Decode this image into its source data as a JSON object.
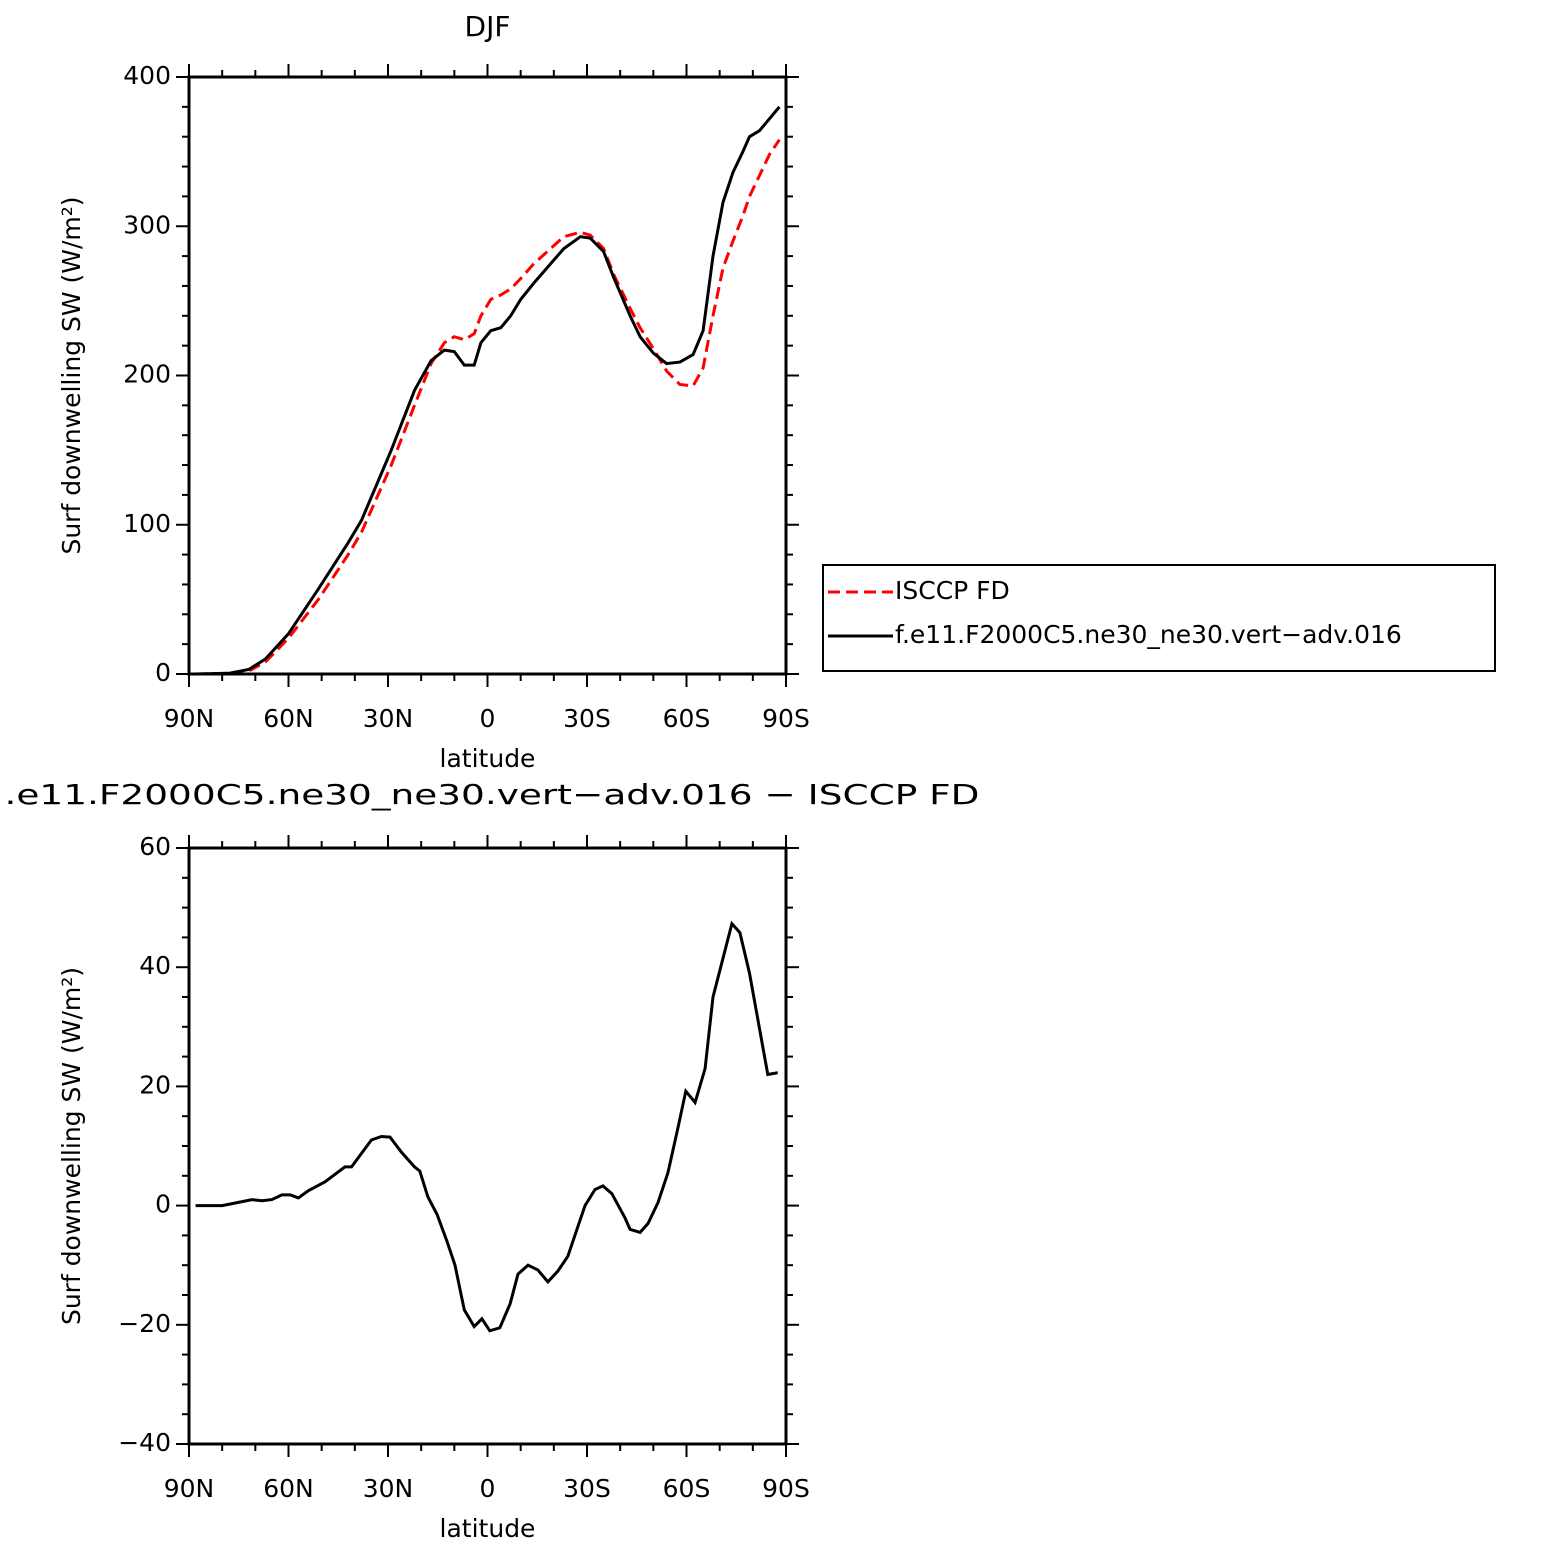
{
  "chart_data": [
    {
      "type": "line",
      "title": "DJF",
      "xlabel": "latitude",
      "ylabel": "Surf downwelling SW (W/m²)",
      "x": [
        88,
        78,
        72,
        67,
        60,
        51,
        42,
        38,
        29,
        22,
        17,
        13,
        10,
        7,
        4,
        2,
        -1,
        -4,
        -7,
        -10,
        -14,
        -23,
        -28,
        -31,
        -35,
        -38,
        -43,
        -46,
        -50,
        -54,
        -58,
        -62,
        -65,
        -68,
        -71,
        -74,
        -77,
        -79,
        -82,
        -85,
        -88
      ],
      "series": [
        {
          "name": "ISCCP FD",
          "color": "#ff0000",
          "dash": true,
          "values": [
            0,
            0.5,
            2,
            8,
            24,
            50,
            80,
            95,
            140,
            180,
            208,
            222,
            226,
            224,
            228,
            240,
            251,
            254,
            258,
            265,
            275,
            293,
            296,
            294,
            285,
            268,
            245,
            232,
            218,
            203,
            194,
            193,
            205,
            240,
            272,
            290,
            307,
            320,
            334,
            348,
            358
          ]
        },
        {
          "name": "f.e11.F2000C5.ne30_ne30.vert−adv.016",
          "color": "#000000",
          "dash": false,
          "values": [
            0,
            0.5,
            3,
            10,
            27,
            57,
            88,
            103,
            150,
            190,
            210,
            217,
            216,
            207,
            207,
            222,
            230,
            232,
            240,
            251,
            262,
            285,
            293,
            292,
            283,
            266,
            240,
            226,
            215,
            208,
            209,
            214,
            230,
            280,
            316,
            336,
            350,
            360,
            364,
            372,
            380
          ]
        }
      ],
      "xlim": [
        90,
        -90
      ],
      "xticks": [
        {
          "value": 90,
          "label": "90N"
        },
        {
          "value": 60,
          "label": "60N"
        },
        {
          "value": 30,
          "label": "30N"
        },
        0,
        {
          "value": -30,
          "label": "30S"
        },
        {
          "value": -60,
          "label": "60S"
        },
        {
          "value": -90,
          "label": "90S"
        }
      ],
      "ylim": [
        0,
        400
      ],
      "yticks": [
        0,
        100,
        200,
        300,
        400
      ],
      "legend": "right"
    },
    {
      "type": "line",
      "title": ".e11.F2000C5.ne30_ne30.vert−adv.016 − ISCCP FD",
      "xlabel": "latitude",
      "ylabel": "Surf downwelling SW (W/m²)",
      "x": [
        88,
        80,
        75.5,
        71,
        68,
        65,
        62,
        59.5,
        57,
        54,
        49,
        43,
        41,
        35,
        32,
        29.4,
        26,
        22,
        20.4,
        18,
        15.2,
        12.2,
        9.8,
        7,
        4,
        1.7,
        -0.7,
        -3.7,
        -6.8,
        -9.2,
        -12.2,
        -15.2,
        -18.2,
        -21.2,
        -24.2,
        -29.4,
        -32.4,
        -34.8,
        -37.5,
        -41.4,
        -43,
        -46,
        -48.4,
        -51.4,
        -54.4,
        -57.4,
        -59.8,
        -62.6,
        -65.6,
        -68,
        -73.7,
        -76.1,
        -79,
        -84.5,
        -87.5
      ],
      "values": [
        0,
        0,
        0.5,
        1,
        0.8,
        1,
        1.8,
        1.8,
        1.3,
        2.5,
        4,
        6.5,
        6.5,
        11,
        11.6,
        11.5,
        9,
        6.5,
        5.8,
        1.5,
        -1.5,
        -6,
        -10,
        -17.5,
        -20.3,
        -19,
        -21,
        -20.5,
        -16.5,
        -11.5,
        -10,
        -10.8,
        -12.8,
        -11,
        -8.5,
        0,
        2.7,
        3.3,
        2,
        -2,
        -4,
        -4.5,
        -3,
        0.5,
        5.5,
        13,
        19.2,
        17.3,
        23,
        35,
        47.3,
        45.8,
        39,
        22,
        22.3
      ],
      "color": "#000000",
      "xlim": [
        90,
        -90
      ],
      "xticks": [
        {
          "value": 90,
          "label": "90N"
        },
        {
          "value": 60,
          "label": "60N"
        },
        {
          "value": 30,
          "label": "30N"
        },
        0,
        {
          "value": -30,
          "label": "30S"
        },
        {
          "value": -60,
          "label": "60S"
        },
        {
          "value": -90,
          "label": "90S"
        }
      ],
      "ylim": [
        -40,
        60
      ],
      "yticks": [
        {
          "value": -40,
          "label": "−40"
        },
        {
          "value": -20,
          "label": "−20"
        },
        0,
        20,
        40,
        60
      ]
    }
  ]
}
